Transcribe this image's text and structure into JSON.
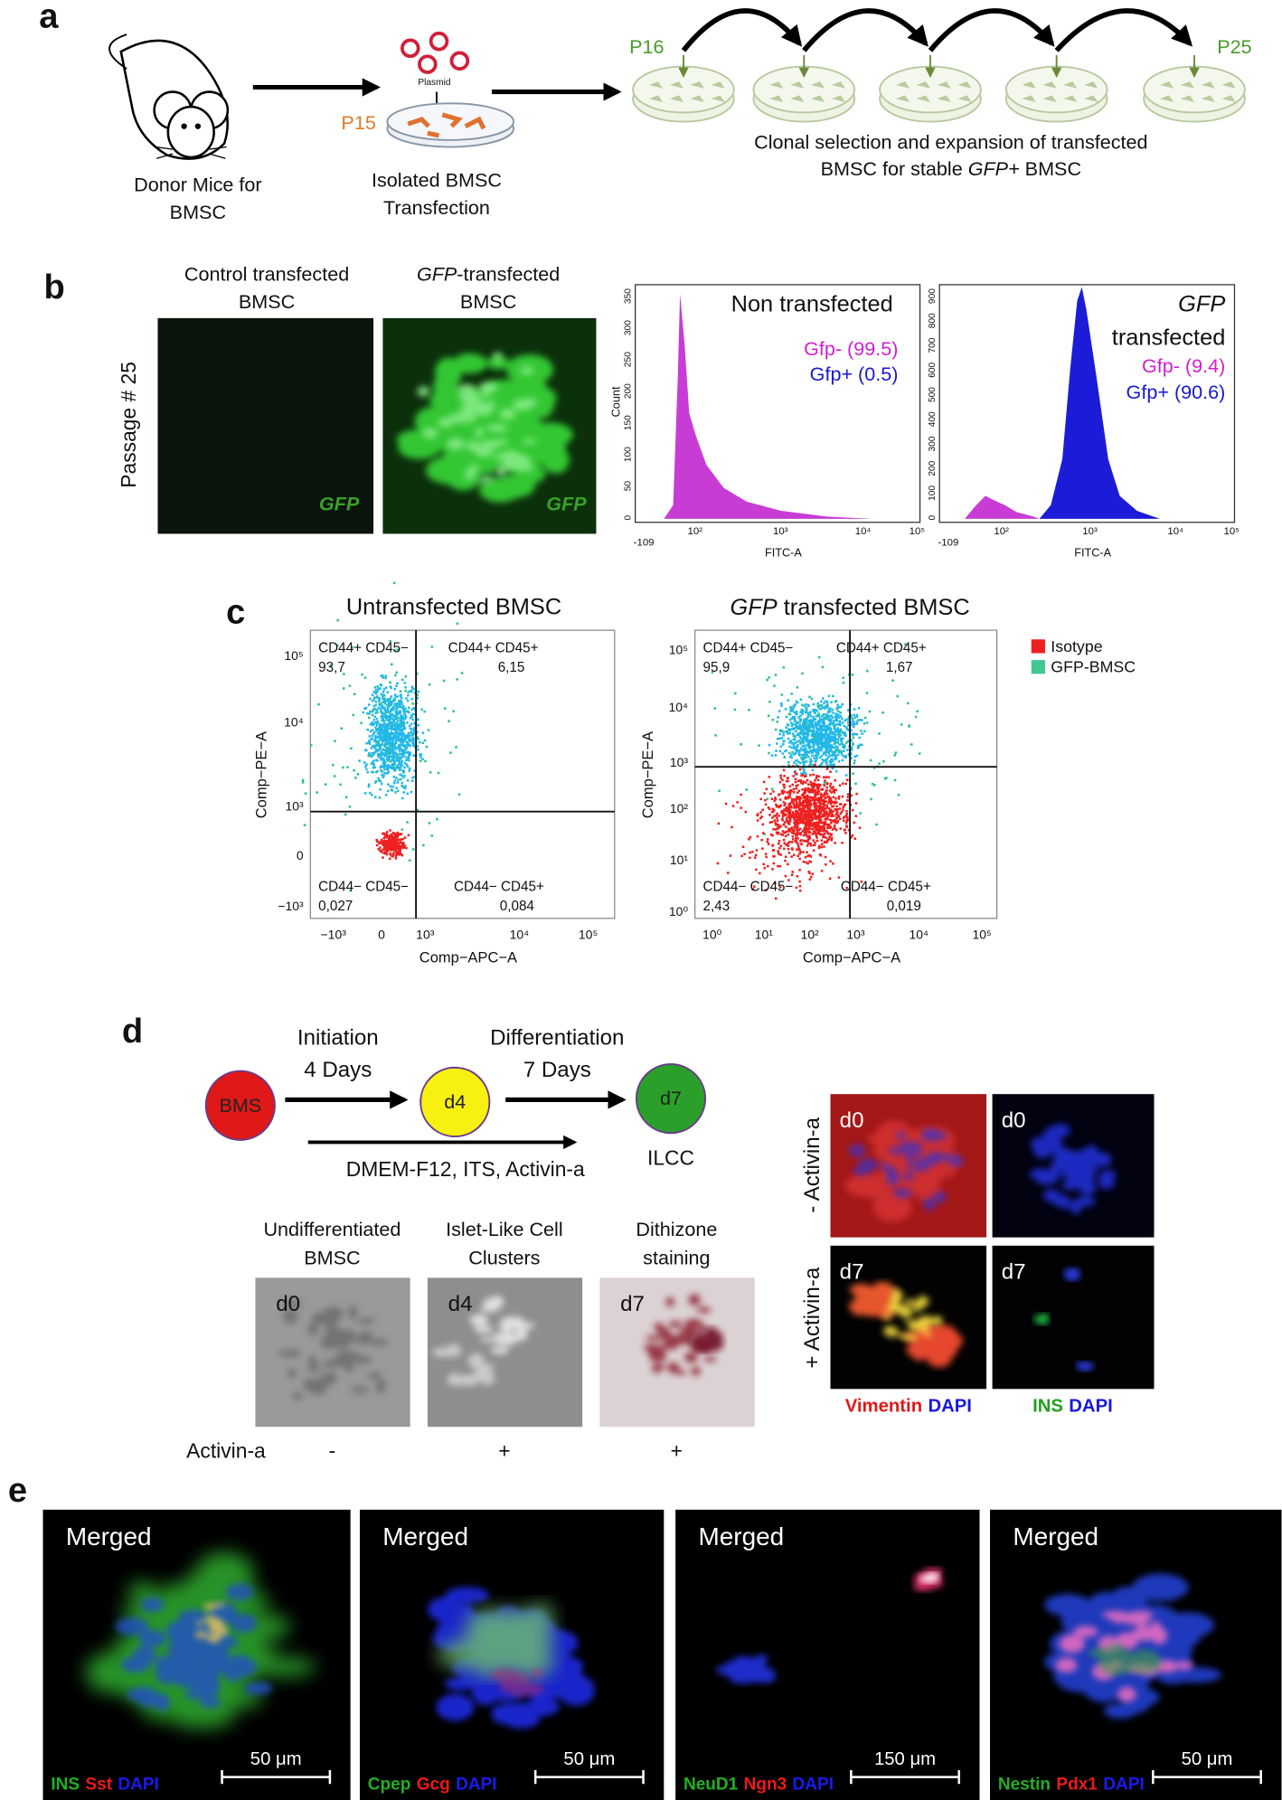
{
  "panel_a": {
    "label": "a",
    "donor": [
      "Donor Mice for",
      "BMSC"
    ],
    "plasmid": "Plasmid",
    "passage_start": "P15",
    "isolated": [
      "Isolated BMSC",
      "Transfection"
    ],
    "clone_start": "P16",
    "clone_end": "P25",
    "caption_line1": "Clonal selection and expansion of transfected",
    "caption_line2": [
      "BMSC for stable ",
      "GFP+",
      " BMSC"
    ]
  },
  "panel_b": {
    "label": "b",
    "row_label": "Passage # 25",
    "images": [
      {
        "title_line1": "Control transfected",
        "title_line2": "BMSC",
        "stain": "GFP"
      },
      {
        "title_italic": "GFP",
        "title_rest": "-transfected",
        "title_line2": "BMSC",
        "stain": "GFP"
      }
    ],
    "histograms": [
      {
        "title": [
          "Non transfected"
        ],
        "negative": "Gfp- (99.5)",
        "positive": "Gfp+ (0.5)",
        "y_label": "Count",
        "x_label": "FITC-A",
        "xticks": [
          "-109",
          "10²",
          "10³",
          "10⁴",
          "10⁵"
        ],
        "yticks": [
          "0",
          "50",
          "100",
          "150",
          "200",
          "250",
          "300",
          "350"
        ]
      },
      {
        "title": [
          "GFP",
          "transfected"
        ],
        "negative": "Gfp- (9.4)",
        "positive": "Gfp+ (90.6)",
        "x_label": "FITC-A",
        "xticks": [
          "-109",
          "10²",
          "10³",
          "10⁴",
          "10⁵"
        ],
        "yticks": [
          "0",
          "100",
          "200",
          "300",
          "400",
          "500",
          "600",
          "700",
          "800",
          "900"
        ]
      }
    ]
  },
  "panel_c": {
    "label": "c",
    "plots": [
      {
        "title": [
          "Untransfected BMSC"
        ],
        "quadrants": [
          {
            "name": "CD44+ CD45−",
            "value": "93,7"
          },
          {
            "name": "CD44+ CD45+",
            "value": "6,15"
          },
          {
            "name": "CD44− CD45−",
            "value": "0,027"
          },
          {
            "name": "CD44− CD45+",
            "value": "0,084"
          }
        ],
        "yticks": [
          "10⁵",
          "10⁴",
          "10³",
          "0",
          "−10³"
        ],
        "xticks": [
          "−10³",
          "0",
          "10³",
          "10⁴",
          "10⁵"
        ],
        "y_label": "Comp−PE−A",
        "x_label": "Comp−APC−A"
      },
      {
        "title": [
          "GFP",
          " transfected BMSC"
        ],
        "quadrants": [
          {
            "name": "CD44+ CD45−",
            "value": "95,9"
          },
          {
            "name": "CD44+ CD45+",
            "value": "1,67"
          },
          {
            "name": "CD44− CD45−",
            "value": "2,43"
          },
          {
            "name": "CD44− CD45+",
            "value": "0,019"
          }
        ],
        "yticks": [
          "10⁵",
          "10⁴",
          "10³",
          "10²",
          "10¹",
          "10⁰"
        ],
        "xticks": [
          "10⁰",
          "10¹",
          "10²",
          "10³",
          "10⁴",
          "10⁵"
        ],
        "y_label": "Comp−PE−A",
        "x_label": "Comp−APC−A"
      }
    ],
    "legend": [
      "Isotype",
      "GFP-BMSC"
    ]
  },
  "panel_d": {
    "label": "d",
    "steps": [
      "BMS",
      "d4",
      "d7"
    ],
    "step1": [
      "Initiation",
      "4 Days"
    ],
    "step2": [
      "Differentiation",
      "7 Days"
    ],
    "medium": "DMEM-F12, ITS, Activin-a",
    "product": "ILCC",
    "images": [
      {
        "title": [
          "Undifferentiated",
          "BMSC"
        ],
        "tag": "d0",
        "activin": "-"
      },
      {
        "title": [
          "Islet-Like Cell",
          "Clusters"
        ],
        "tag": "d4",
        "activin": "+"
      },
      {
        "title": [
          "Dithizone",
          "staining"
        ],
        "tag": "d7",
        "activin": "+"
      }
    ],
    "activin_label": "Activin-a",
    "stain_grid": {
      "rows": [
        {
          "label": "- Activin-a",
          "tags": [
            "d0",
            "d0"
          ]
        },
        {
          "label": "+ Activin-a",
          "tags": [
            "d7",
            "d7"
          ]
        }
      ],
      "columns": [
        [
          "Vimentin",
          "DAPI"
        ],
        [
          "INS",
          "DAPI"
        ]
      ]
    }
  },
  "panel_e": {
    "label": "e",
    "images": [
      {
        "title": "Merged",
        "stains": [
          "INS",
          "Sst",
          "DAPI"
        ],
        "scale": "50 μm"
      },
      {
        "title": "Merged",
        "stains": [
          "Cpep",
          "Gcg",
          "DAPI"
        ],
        "scale": "50 μm"
      },
      {
        "title": "Merged",
        "stains": [
          "NeuD1",
          "Ngn3",
          "DAPI"
        ],
        "scale": "150 μm"
      },
      {
        "title": "Merged",
        "stains": [
          "Nestin",
          "Pdx1",
          "DAPI"
        ],
        "scale": "50 μm"
      }
    ]
  }
}
